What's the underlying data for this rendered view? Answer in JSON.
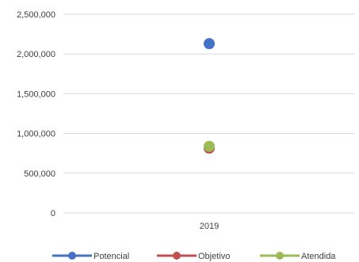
{
  "chart_data": {
    "type": "scatter",
    "categories": [
      "2019"
    ],
    "ylim": [
      0,
      2500000
    ],
    "yticks": [
      "0",
      "500,000",
      "1,000,000",
      "1,500,000",
      "2,000,000",
      "2,500,000"
    ],
    "grid": true,
    "legend_position": "bottom",
    "series": [
      {
        "name": "Potencial",
        "color": "#4472C4",
        "values": [
          2130000
        ]
      },
      {
        "name": "Objetivo",
        "color": "#C0504D",
        "values": [
          815000
        ]
      },
      {
        "name": "Atendida",
        "color": "#9BBB59",
        "values": [
          838000
        ]
      }
    ]
  }
}
